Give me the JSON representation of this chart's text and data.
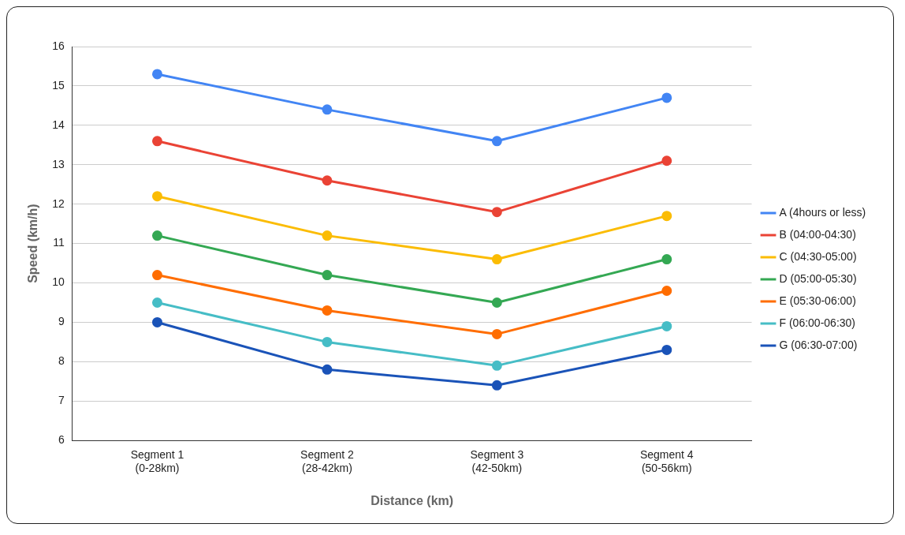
{
  "chart_data": {
    "type": "line",
    "xlabel": "Distance (km)",
    "ylabel": "Speed (km/h)",
    "categories": [
      "Segment 1\n(0-28km)",
      "Segment 2\n(28-42km)",
      "Segment 3\n(42-50km)",
      "Segment 4\n(50-56km)"
    ],
    "series": [
      {
        "name": "A (4hours or less)",
        "color": "#4285f4",
        "values": [
          15.3,
          14.4,
          13.6,
          14.7
        ]
      },
      {
        "name": "B (04:00-04:30)",
        "color": "#ea4335",
        "values": [
          13.6,
          12.6,
          11.8,
          13.1
        ]
      },
      {
        "name": "C (04:30-05:00)",
        "color": "#fbbc04",
        "values": [
          12.2,
          11.2,
          10.6,
          11.7
        ]
      },
      {
        "name": "D (05:00-05:30)",
        "color": "#34a853",
        "values": [
          11.2,
          10.2,
          9.5,
          10.6
        ]
      },
      {
        "name": "E (05:30-06:00)",
        "color": "#ff6d01",
        "values": [
          10.2,
          9.3,
          8.7,
          9.8
        ]
      },
      {
        "name": "F (06:00-06:30)",
        "color": "#46bdc6",
        "values": [
          9.5,
          8.5,
          7.9,
          8.9
        ]
      },
      {
        "name": "G (06:30-07:00)",
        "color": "#1a53b8",
        "values": [
          9.0,
          7.8,
          7.4,
          8.3
        ]
      }
    ],
    "ylim": [
      6,
      16
    ],
    "yticks": [
      6,
      7,
      8,
      9,
      10,
      11,
      12,
      13,
      14,
      15,
      16
    ],
    "grid": "y",
    "legend": "right",
    "marker": "circle",
    "line_style": "solid"
  }
}
